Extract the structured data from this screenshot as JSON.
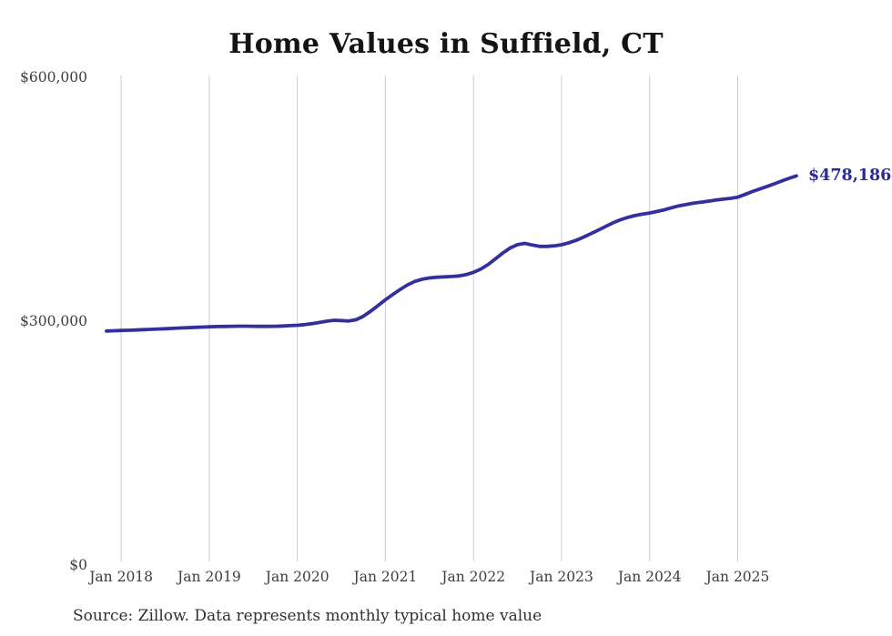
{
  "chart_data": {
    "type": "line",
    "title": "Home Values in Suffield, CT",
    "series_name": "Monthly typical home value",
    "source_note": "Source: Zillow. Data represents monthly typical home value",
    "end_label": "$478,186",
    "line_color": "#32309e",
    "grid_color": "#cccccc",
    "grid": "vertical-only",
    "legend": "none",
    "ylim": [
      0,
      600000
    ],
    "x_range": {
      "start": "2017-11",
      "end": "2025-09",
      "cadence": "monthly"
    },
    "y_ticks": [
      {
        "v": 0,
        "label": "$0"
      },
      {
        "v": 300000,
        "label": "$300,000"
      },
      {
        "v": 600000,
        "label": "$600,000"
      }
    ],
    "x_ticks": [
      {
        "i": 2,
        "label": "Jan 2018"
      },
      {
        "i": 14,
        "label": "Jan 2019"
      },
      {
        "i": 26,
        "label": "Jan 2020"
      },
      {
        "i": 38,
        "label": "Jan 2021"
      },
      {
        "i": 50,
        "label": "Jan 2022"
      },
      {
        "i": 62,
        "label": "Jan 2023"
      },
      {
        "i": 74,
        "label": "Jan 2024"
      },
      {
        "i": 86,
        "label": "Jan 2025"
      }
    ],
    "values": [
      287400,
      287700,
      288000,
      288300,
      288600,
      289000,
      289400,
      289800,
      290200,
      290600,
      291000,
      291400,
      291800,
      292200,
      292500,
      292800,
      293000,
      293200,
      293300,
      293300,
      293200,
      293100,
      293100,
      293200,
      293500,
      293900,
      294400,
      295200,
      296400,
      297900,
      299400,
      300600,
      300200,
      299700,
      301200,
      305500,
      311800,
      318800,
      325800,
      332200,
      338400,
      344000,
      348400,
      351100,
      352600,
      353500,
      354000,
      354400,
      355100,
      356700,
      359500,
      363600,
      369200,
      376200,
      383300,
      389600,
      393600,
      395100,
      393100,
      391500,
      391400,
      392100,
      393500,
      395900,
      399000,
      402900,
      407100,
      411500,
      416000,
      420400,
      424100,
      427100,
      429400,
      431100,
      432500,
      434400,
      436500,
      439000,
      441400,
      443100,
      444600,
      445900,
      447100,
      448400,
      449500,
      450600,
      452000,
      455400,
      458900,
      462100,
      465200,
      468500,
      471900,
      475200,
      478186
    ],
    "final_value": 478186
  }
}
